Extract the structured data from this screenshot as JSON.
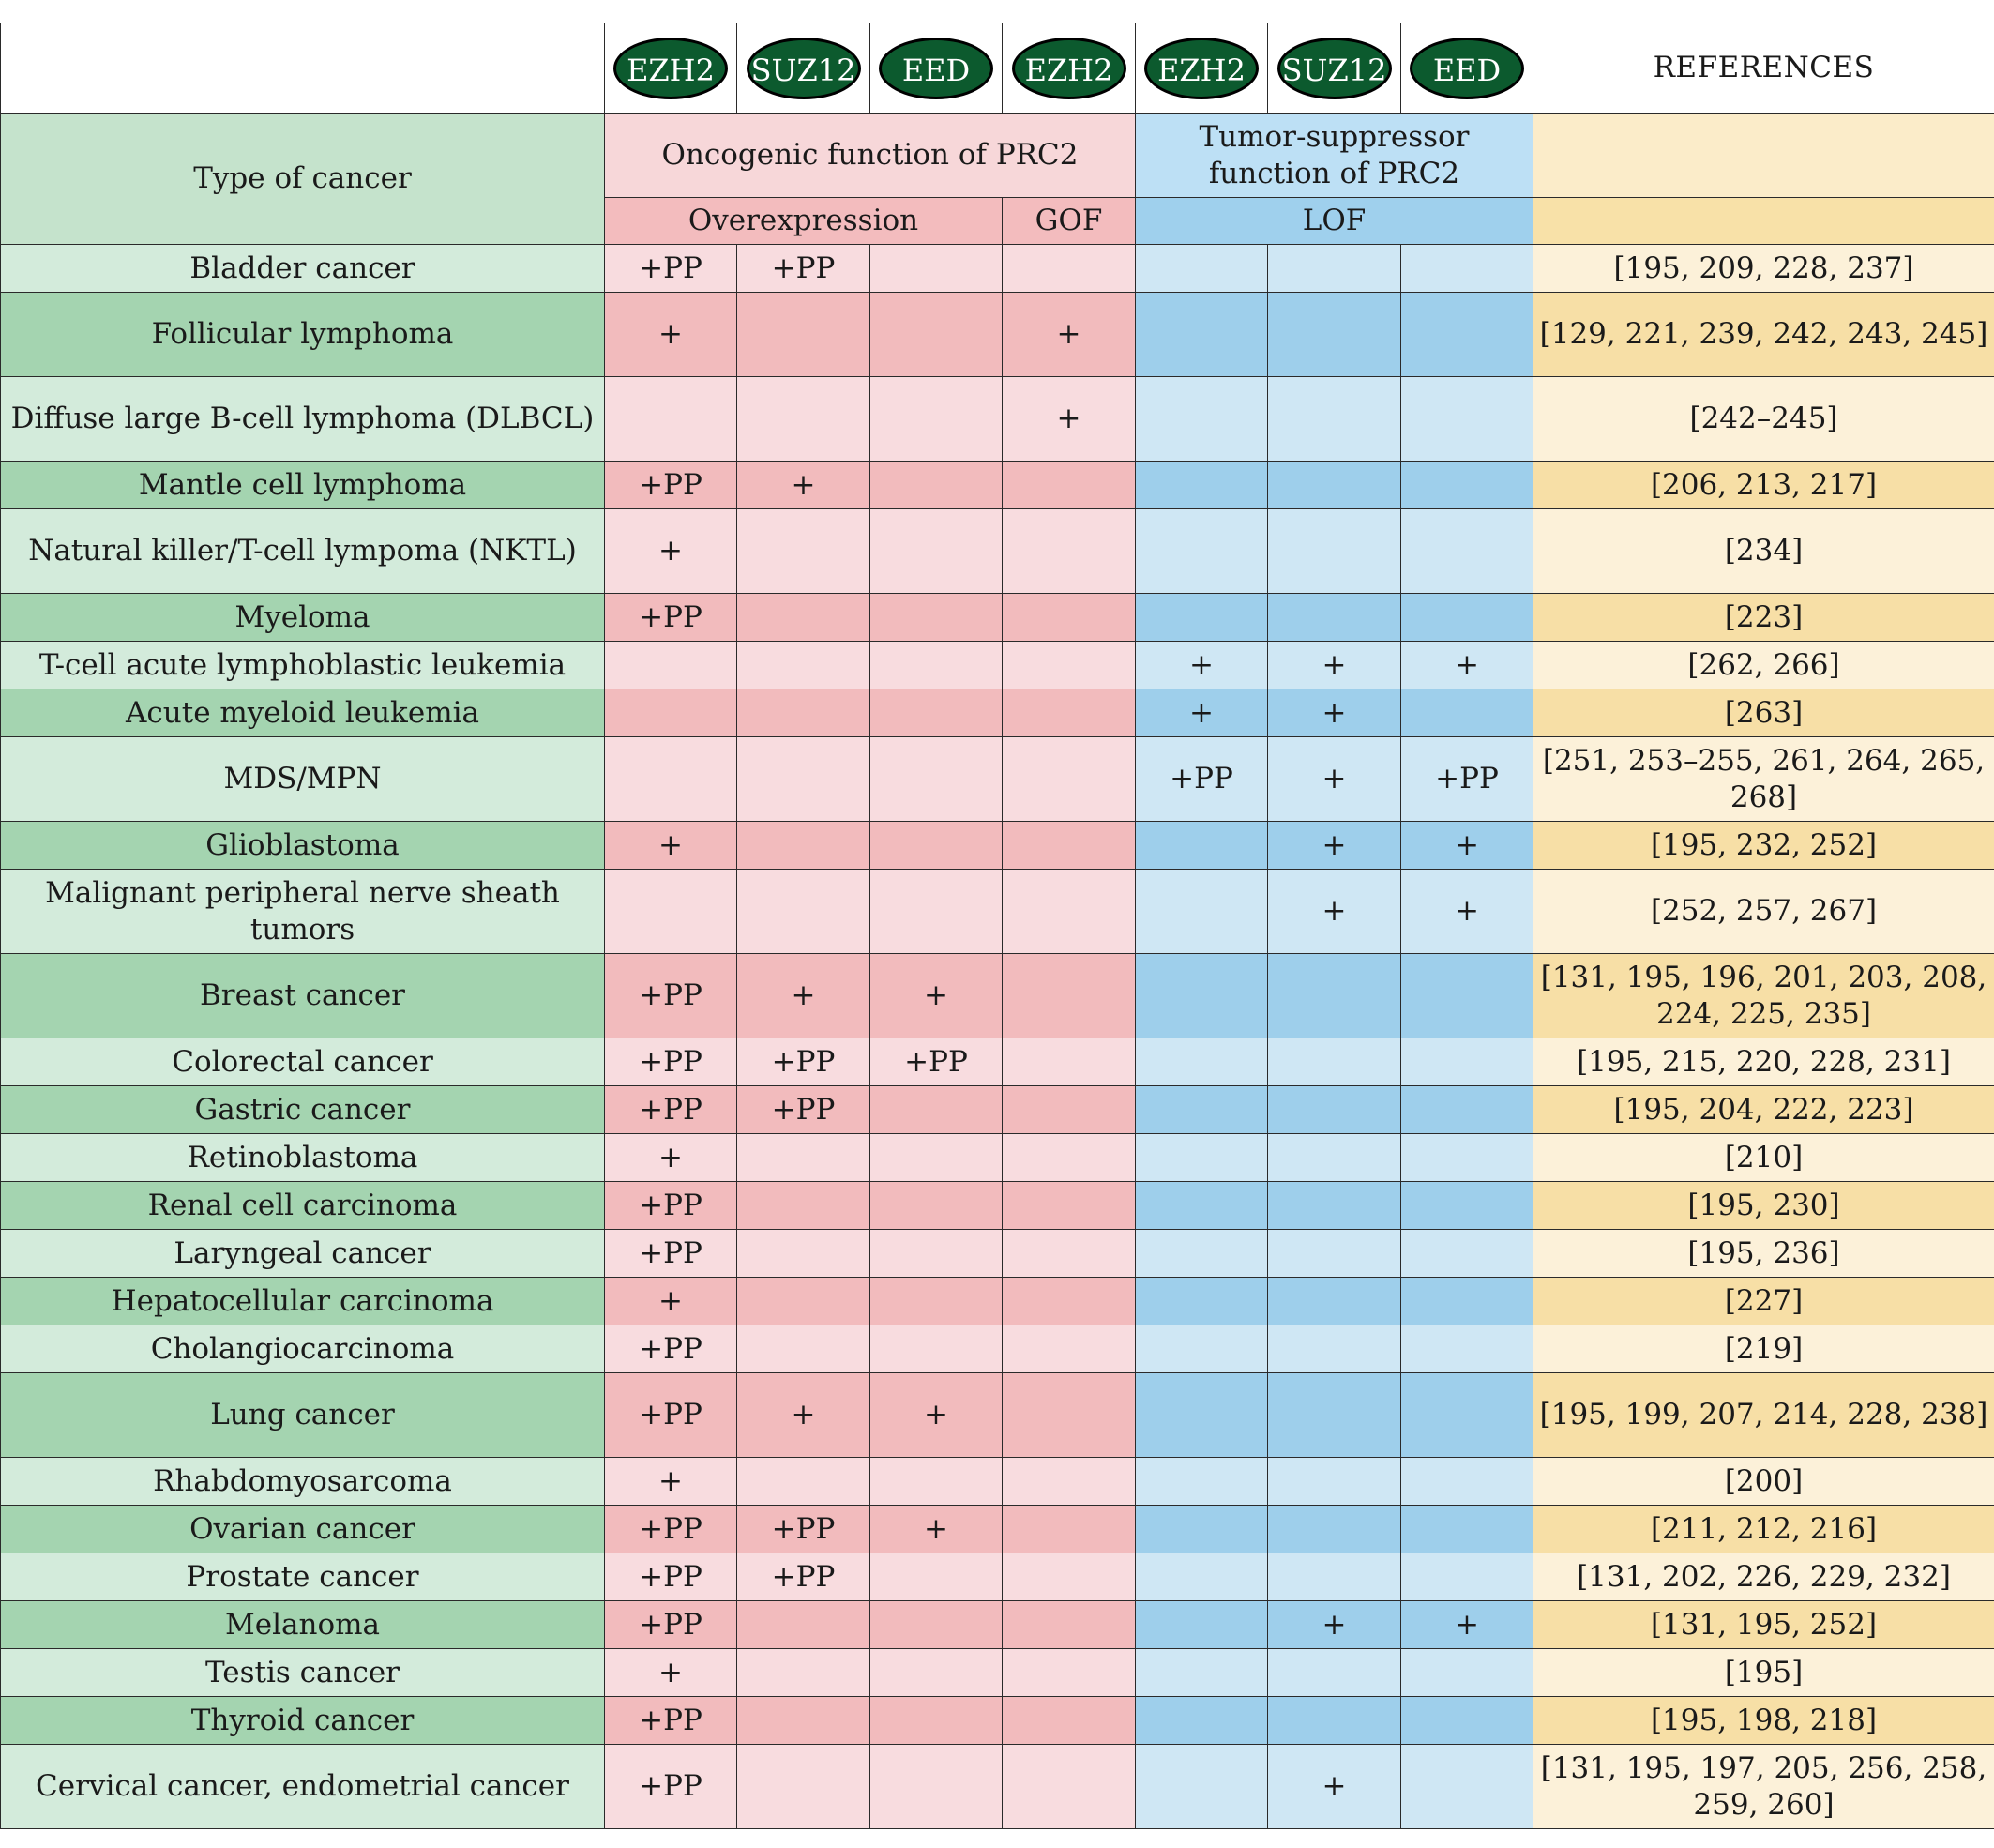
{
  "header": {
    "proteins": [
      "EZH2",
      "SUZ12",
      "EED",
      "EZH2",
      "EZH2",
      "SUZ12",
      "EED"
    ],
    "references_label": "REFERENCES",
    "type_of_cancer_label": "Type of cancer",
    "oncogenic_label": "Oncogenic function of PRC2",
    "suppressor_label": "Tumor-suppressor function of PRC2",
    "overexpression_label": "Overexpression",
    "gof_label": "GOF",
    "lof_label": "LOF"
  },
  "rows": [
    {
      "type": "Bladder cancer",
      "cells": [
        "+PP",
        "+PP",
        "",
        "",
        "",
        "",
        ""
      ],
      "refs": "[195, 209, 228, 237]"
    },
    {
      "type": "Follicular lymphoma",
      "cells": [
        "+",
        "",
        "",
        "+",
        "",
        "",
        ""
      ],
      "refs": "[129, 221, 239, 242, 243, 245]"
    },
    {
      "type": "Diffuse large B-cell lymphoma (DLBCL)",
      "cells": [
        "",
        "",
        "",
        "+",
        "",
        "",
        ""
      ],
      "refs": "[242–245]"
    },
    {
      "type": "Mantle cell lymphoma",
      "cells": [
        "+PP",
        "+",
        "",
        "",
        "",
        "",
        ""
      ],
      "refs": "[206, 213, 217]"
    },
    {
      "type": "Natural killer/T-cell lympoma (NKTL)",
      "cells": [
        "+",
        "",
        "",
        "",
        "",
        "",
        ""
      ],
      "refs": "[234]"
    },
    {
      "type": "Myeloma",
      "cells": [
        "+PP",
        "",
        "",
        "",
        "",
        "",
        ""
      ],
      "refs": "[223]"
    },
    {
      "type": "T-cell acute lymphoblastic leukemia",
      "cells": [
        "",
        "",
        "",
        "",
        "+",
        "+",
        "+"
      ],
      "refs": "[262, 266]"
    },
    {
      "type": "Acute myeloid leukemia",
      "cells": [
        "",
        "",
        "",
        "",
        "+",
        "+",
        ""
      ],
      "refs": "[263]"
    },
    {
      "type": "MDS/MPN",
      "cells": [
        "",
        "",
        "",
        "",
        "+PP",
        "+",
        "+PP"
      ],
      "refs": "[251, 253–255, 261, 264, 265, 268]"
    },
    {
      "type": "Glioblastoma",
      "cells": [
        "+",
        "",
        "",
        "",
        "",
        "+",
        "+"
      ],
      "refs": "[195, 232, 252]"
    },
    {
      "type": "Malignant peripheral nerve sheath tumors",
      "cells": [
        "",
        "",
        "",
        "",
        "",
        "+",
        "+"
      ],
      "refs": "[252, 257, 267]"
    },
    {
      "type": "Breast cancer",
      "cells": [
        "+PP",
        "+",
        "+",
        "",
        "",
        "",
        ""
      ],
      "refs": "[131, 195, 196, 201, 203, 208, 224, 225, 235]"
    },
    {
      "type": "Colorectal cancer",
      "cells": [
        "+PP",
        "+PP",
        "+PP",
        "",
        "",
        "",
        ""
      ],
      "refs": "[195, 215, 220, 228, 231]"
    },
    {
      "type": "Gastric cancer",
      "cells": [
        "+PP",
        "+PP",
        "",
        "",
        "",
        "",
        ""
      ],
      "refs": "[195, 204, 222, 223]"
    },
    {
      "type": "Retinoblastoma",
      "cells": [
        "+",
        "",
        "",
        "",
        "",
        "",
        ""
      ],
      "refs": "[210]"
    },
    {
      "type": "Renal cell carcinoma",
      "cells": [
        "+PP",
        "",
        "",
        "",
        "",
        "",
        ""
      ],
      "refs": "[195, 230]"
    },
    {
      "type": "Laryngeal cancer",
      "cells": [
        "+PP",
        "",
        "",
        "",
        "",
        "",
        ""
      ],
      "refs": "[195, 236]"
    },
    {
      "type": "Hepatocellular carcinoma",
      "cells": [
        "+",
        "",
        "",
        "",
        "",
        "",
        ""
      ],
      "refs": "[227]"
    },
    {
      "type": "Cholangiocarcinoma",
      "cells": [
        "+PP",
        "",
        "",
        "",
        "",
        "",
        ""
      ],
      "refs": "[219]"
    },
    {
      "type": "Lung cancer",
      "cells": [
        "+PP",
        "+",
        "+",
        "",
        "",
        "",
        ""
      ],
      "refs": "[195, 199, 207, 214, 228, 238]"
    },
    {
      "type": "Rhabdomyosarcoma",
      "cells": [
        "+",
        "",
        "",
        "",
        "",
        "",
        ""
      ],
      "refs": "[200]"
    },
    {
      "type": "Ovarian cancer",
      "cells": [
        "+PP",
        "+PP",
        "+",
        "",
        "",
        "",
        ""
      ],
      "refs": "[211, 212, 216]"
    },
    {
      "type": "Prostate cancer",
      "cells": [
        "+PP",
        "+PP",
        "",
        "",
        "",
        "",
        ""
      ],
      "refs": "[131, 202, 226, 229, 232]"
    },
    {
      "type": "Melanoma",
      "cells": [
        "+PP",
        "",
        "",
        "",
        "",
        "+",
        "+"
      ],
      "refs": "[131, 195, 252]"
    },
    {
      "type": "Testis cancer",
      "cells": [
        "+",
        "",
        "",
        "",
        "",
        "",
        ""
      ],
      "refs": "[195]"
    },
    {
      "type": "Thyroid cancer",
      "cells": [
        "+PP",
        "",
        "",
        "",
        "",
        "",
        ""
      ],
      "refs": "[195, 198, 218]"
    },
    {
      "type": "Cervical cancer, endometrial cancer",
      "cells": [
        "+PP",
        "",
        "",
        "",
        "",
        "+",
        ""
      ],
      "refs": "[131, 195, 197, 205, 256, 258, 259, 260]"
    }
  ],
  "colors": {
    "protein_oval": "#0c5a2e",
    "type_light": "#d3ebdb",
    "type_dark": "#a4d4b0",
    "oncogenic_light": "#f8dcdf",
    "oncogenic_dark": "#f2bbbd",
    "suppressor_light": "#cfe7f4",
    "suppressor_dark": "#9ecfeb",
    "refs_light": "#fcf1d9",
    "refs_dark": "#f7dfa6"
  }
}
